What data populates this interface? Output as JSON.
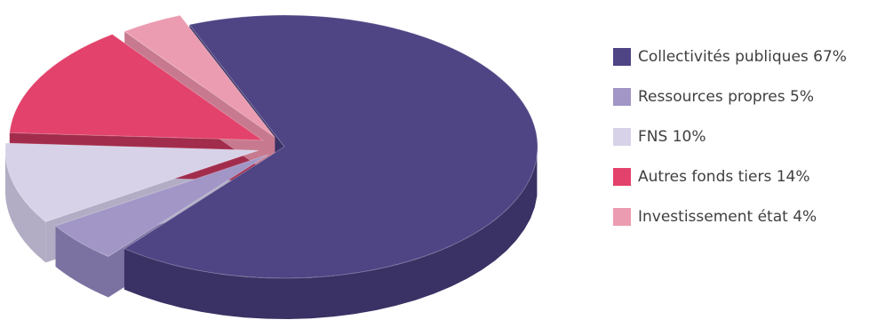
{
  "chart_data": {
    "type": "pie",
    "style": "3d-exploded",
    "title": "",
    "legend_position": "right",
    "slices": [
      {
        "label": "Collectivités publiques 67%",
        "name": "Collectivités publiques",
        "value": 67,
        "color": "#4f4484",
        "side_color": "#3a3164"
      },
      {
        "label": "Ressources propres 5%",
        "name": "Ressources propres",
        "value": 5,
        "color": "#a196c6",
        "side_color": "#7c72a2"
      },
      {
        "label": "FNS 10%",
        "name": "FNS",
        "value": 10,
        "color": "#d7d2e8",
        "side_color": "#b2adc4"
      },
      {
        "label": "Autres fonds tiers 14%",
        "name": "Autres fonds tiers",
        "value": 14,
        "color": "#e2426b",
        "side_color": "#a22c4c"
      },
      {
        "label": "Investissement état 4%",
        "name": "Investissement état",
        "value": 4,
        "color": "#ec9cb0",
        "side_color": "#c77a8f"
      }
    ]
  }
}
